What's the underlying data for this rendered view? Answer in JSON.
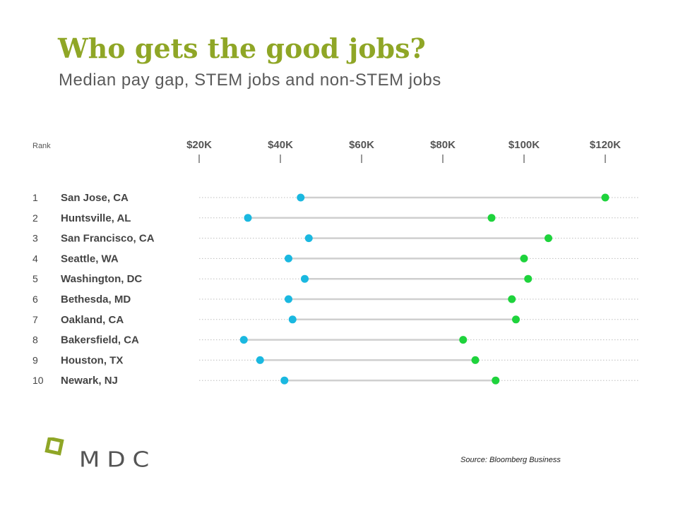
{
  "slide": {
    "title": "Who gets the good jobs?",
    "subtitle": "Median pay gap, STEM jobs and non-STEM jobs",
    "source": "Source: Bloomberg Business",
    "logo_text": "MDC"
  },
  "colors": {
    "title": "#8fa626",
    "non_stem_dot": "#1ab8e0",
    "stem_dot": "#1ed33c",
    "connector": "#cfcfcf",
    "logo_square": "#8fa626",
    "logo_text": "#555555"
  },
  "chart_data": {
    "type": "dumbbell",
    "rank_header": "Rank",
    "x_ticks": [
      {
        "value": 20,
        "label": "$20K"
      },
      {
        "value": 40,
        "label": "$40K"
      },
      {
        "value": 60,
        "label": "$60K"
      },
      {
        "value": 80,
        "label": "$80K"
      },
      {
        "value": 100,
        "label": "$100K"
      },
      {
        "value": 120,
        "label": "$120K"
      }
    ],
    "xlim": [
      20,
      120
    ],
    "unit": "$K",
    "rows": [
      {
        "rank": "1",
        "city": "San Jose, CA",
        "non_stem": 45,
        "stem": 120
      },
      {
        "rank": "2",
        "city": "Huntsville, AL",
        "non_stem": 32,
        "stem": 92
      },
      {
        "rank": "3",
        "city": "San Francisco, CA",
        "non_stem": 47,
        "stem": 106
      },
      {
        "rank": "4",
        "city": "Seattle, WA",
        "non_stem": 42,
        "stem": 100
      },
      {
        "rank": "5",
        "city": "Washington, DC",
        "non_stem": 46,
        "stem": 101
      },
      {
        "rank": "6",
        "city": "Bethesda, MD",
        "non_stem": 42,
        "stem": 97
      },
      {
        "rank": "7",
        "city": "Oakland, CA",
        "non_stem": 43,
        "stem": 98
      },
      {
        "rank": "8",
        "city": "Bakersfield, CA",
        "non_stem": 31,
        "stem": 85
      },
      {
        "rank": "9",
        "city": "Houston, TX",
        "non_stem": 35,
        "stem": 88
      },
      {
        "rank": "10",
        "city": "Newark, NJ",
        "non_stem": 41,
        "stem": 93
      }
    ]
  }
}
